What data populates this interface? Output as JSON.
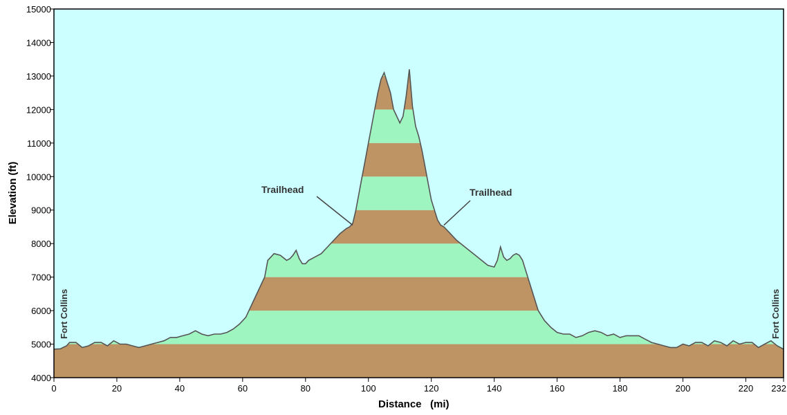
{
  "chart_data": {
    "type": "area",
    "xlabel": "Distance   (mi)",
    "ylabel": "Elevation (ft)",
    "xlim": [
      0,
      232
    ],
    "ylim": [
      4000,
      15000
    ],
    "x_ticks": [
      0,
      20,
      40,
      60,
      80,
      100,
      120,
      140,
      160,
      180,
      200,
      220,
      232
    ],
    "y_ticks": [
      4000,
      5000,
      6000,
      7000,
      8000,
      9000,
      10000,
      11000,
      12000,
      13000,
      14000,
      15000
    ],
    "grid": false,
    "colors": {
      "background": "#ccffff",
      "band_brown": "#bf9465",
      "band_green": "#9ef5bf",
      "outline": "#555555"
    },
    "series": [
      {
        "x": [
          0,
          2,
          4,
          5,
          7,
          9,
          11,
          13,
          15,
          17,
          19,
          21,
          23,
          25,
          27,
          29,
          31,
          33,
          35,
          37,
          39,
          41,
          43,
          45,
          47,
          49,
          51,
          53,
          55,
          57,
          59,
          61,
          63,
          65,
          67,
          68,
          70,
          72,
          74,
          75,
          76,
          77,
          78,
          79,
          80,
          81,
          83,
          85,
          87,
          89,
          91,
          93,
          94,
          95,
          96,
          97,
          98,
          99,
          100,
          101,
          102,
          103,
          104,
          105,
          106,
          107,
          108,
          109,
          110,
          111,
          112,
          113,
          114,
          115,
          116,
          117,
          118,
          119,
          120,
          121,
          122,
          123,
          124,
          126,
          128,
          130,
          132,
          134,
          136,
          138,
          140,
          141,
          142,
          143,
          144,
          145,
          146,
          147,
          148,
          149,
          150,
          152,
          154,
          156,
          158,
          160,
          162,
          164,
          166,
          168,
          170,
          172,
          174,
          176,
          178,
          180,
          182,
          184,
          186,
          188,
          190,
          192,
          194,
          196,
          198,
          200,
          202,
          204,
          206,
          208,
          210,
          212,
          214,
          216,
          218,
          220,
          222,
          224,
          226,
          228,
          230,
          232
        ],
        "y": [
          4850,
          4860,
          4950,
          5050,
          5050,
          4900,
          4950,
          5050,
          5050,
          4950,
          5100,
          5000,
          5000,
          4950,
          4900,
          4950,
          5000,
          5050,
          5100,
          5200,
          5200,
          5250,
          5300,
          5400,
          5300,
          5250,
          5300,
          5300,
          5350,
          5450,
          5600,
          5800,
          6200,
          6600,
          7000,
          7500,
          7700,
          7650,
          7500,
          7550,
          7650,
          7800,
          7550,
          7400,
          7400,
          7500,
          7600,
          7700,
          7900,
          8100,
          8300,
          8450,
          8500,
          8600,
          9000,
          9500,
          10000,
          10500,
          11000,
          11500,
          12000,
          12500,
          12900,
          13100,
          12800,
          12500,
          12000,
          11800,
          11600,
          11800,
          12400,
          13200,
          12100,
          11500,
          11200,
          10800,
          10300,
          9800,
          9300,
          9000,
          8700,
          8550,
          8500,
          8300,
          8100,
          7950,
          7800,
          7650,
          7500,
          7350,
          7300,
          7500,
          7900,
          7600,
          7500,
          7550,
          7650,
          7700,
          7650,
          7500,
          7200,
          6600,
          6000,
          5700,
          5500,
          5350,
          5300,
          5300,
          5200,
          5250,
          5350,
          5400,
          5350,
          5250,
          5300,
          5200,
          5250,
          5250,
          5250,
          5150,
          5050,
          5000,
          4950,
          4900,
          4900,
          5000,
          4950,
          5050,
          5050,
          4950,
          5100,
          5050,
          4950,
          5100,
          5000,
          5050,
          5050,
          4900,
          5000,
          5100,
          4950,
          4850
        ]
      }
    ],
    "annotations": [
      {
        "text": "Trailhead",
        "x": 95,
        "y": 8550
      },
      {
        "text": "Trailhead",
        "x": 124,
        "y": 8550
      }
    ],
    "side_labels": {
      "left": "Fort Collins",
      "right": "Fort Collins"
    }
  }
}
